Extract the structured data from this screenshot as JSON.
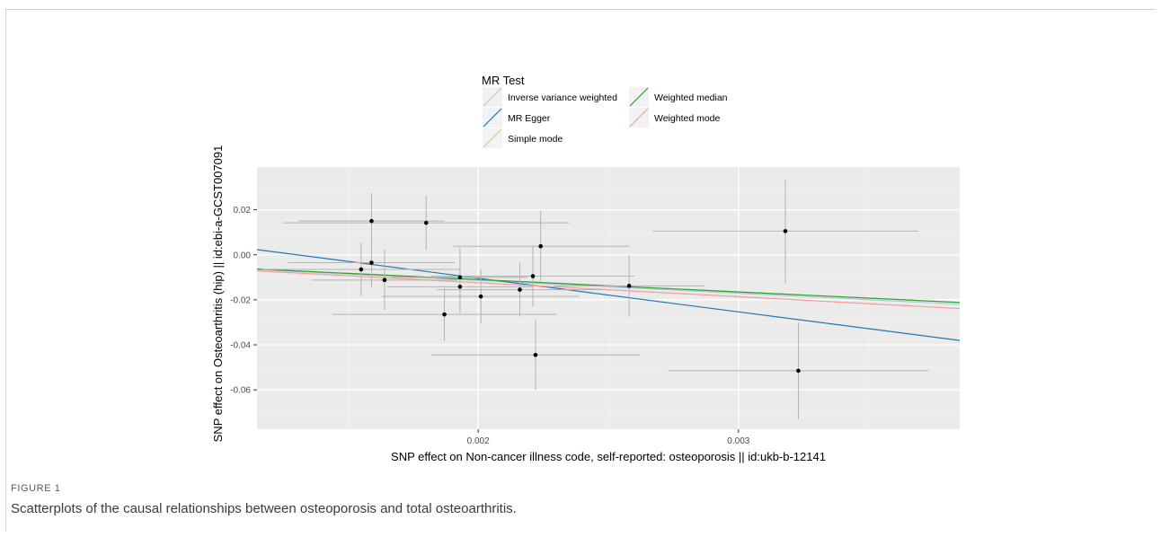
{
  "figure": {
    "label": "FIGURE 1",
    "caption": "Scatterplots of the causal relationships between osteoporosis and total osteoarthritis."
  },
  "chart_data": {
    "type": "scatter",
    "xlabel": "SNP effect on Non-cancer illness code, self-reported: osteoporosis || id:ukb-b-12141",
    "ylabel": "SNP effect on Osteoarthritis (hip) || id:ebi-a-GCST007091",
    "xlim": [
      0.00115,
      0.00385
    ],
    "ylim": [
      -0.0775,
      0.039
    ],
    "xticks": [
      0.002,
      0.003
    ],
    "xtick_labels": [
      "0.002",
      "0.003"
    ],
    "yticks": [
      -0.06,
      -0.04,
      -0.02,
      0.0,
      0.02
    ],
    "ytick_labels": [
      "-0.06",
      "-0.04",
      "-0.02",
      "0.00",
      "0.02"
    ],
    "grid": true,
    "legend": {
      "title": "MR Test",
      "placement": "top",
      "entries": [
        {
          "name": "Inverse variance weighted",
          "color": "#a6cee3"
        },
        {
          "name": "MR Egger",
          "color": "#1f78b4"
        },
        {
          "name": "Simple mode",
          "color": "#b2df8a"
        },
        {
          "name": "Weighted median",
          "color": "#33a02c"
        },
        {
          "name": "Weighted mode",
          "color": "#fb9a99"
        }
      ]
    },
    "points": [
      {
        "x": 0.00155,
        "y": -0.0065,
        "xerr": 0.00038,
        "yerr": 0.012
      },
      {
        "x": 0.00159,
        "y": 0.015,
        "xerr": 0.00028,
        "yerr": 0.0125
      },
      {
        "x": 0.00159,
        "y": -0.0035,
        "xerr": 0.00032,
        "yerr": 0.011
      },
      {
        "x": 0.00164,
        "y": -0.0112,
        "xerr": 0.00028,
        "yerr": 0.0135
      },
      {
        "x": 0.0018,
        "y": 0.0142,
        "xerr": 0.00055,
        "yerr": 0.012
      },
      {
        "x": 0.00187,
        "y": -0.0265,
        "xerr": 0.00043,
        "yerr": 0.0118
      },
      {
        "x": 0.00193,
        "y": -0.01,
        "xerr": 0.00026,
        "yerr": 0.013
      },
      {
        "x": 0.00193,
        "y": -0.0142,
        "xerr": 0.00028,
        "yerr": 0.0118
      },
      {
        "x": 0.00201,
        "y": -0.0185,
        "xerr": 0.00038,
        "yerr": 0.012
      },
      {
        "x": 0.00216,
        "y": -0.0155,
        "xerr": 0.00032,
        "yerr": 0.0118
      },
      {
        "x": 0.00221,
        "y": -0.0095,
        "xerr": 0.00039,
        "yerr": 0.0135
      },
      {
        "x": 0.00222,
        "y": -0.0445,
        "xerr": 0.0004,
        "yerr": 0.0155
      },
      {
        "x": 0.00224,
        "y": 0.0038,
        "xerr": 0.00034,
        "yerr": 0.0158
      },
      {
        "x": 0.00258,
        "y": -0.0138,
        "xerr": 0.00029,
        "yerr": 0.0135
      },
      {
        "x": 0.00318,
        "y": 0.0105,
        "xerr": 0.00051,
        "yerr": 0.023
      },
      {
        "x": 0.00323,
        "y": -0.0515,
        "xerr": 0.0005,
        "yerr": 0.0215
      }
    ],
    "lines": [
      {
        "name": "Inverse variance weighted",
        "color": "#a6cee3",
        "slope": -5.7,
        "intercept": 0.0
      },
      {
        "name": "MR Egger",
        "color": "#1f78b4",
        "slope": -14.95,
        "intercept": 0.0195
      },
      {
        "name": "Simple mode",
        "color": "#b2df8a",
        "slope": -5.5,
        "intercept": 0.0
      },
      {
        "name": "Weighted median",
        "color": "#33a02c",
        "slope": -5.5,
        "intercept": 0.0
      },
      {
        "name": "Weighted mode",
        "color": "#fb9a99",
        "slope": -6.2,
        "intercept": 0.0
      }
    ]
  }
}
